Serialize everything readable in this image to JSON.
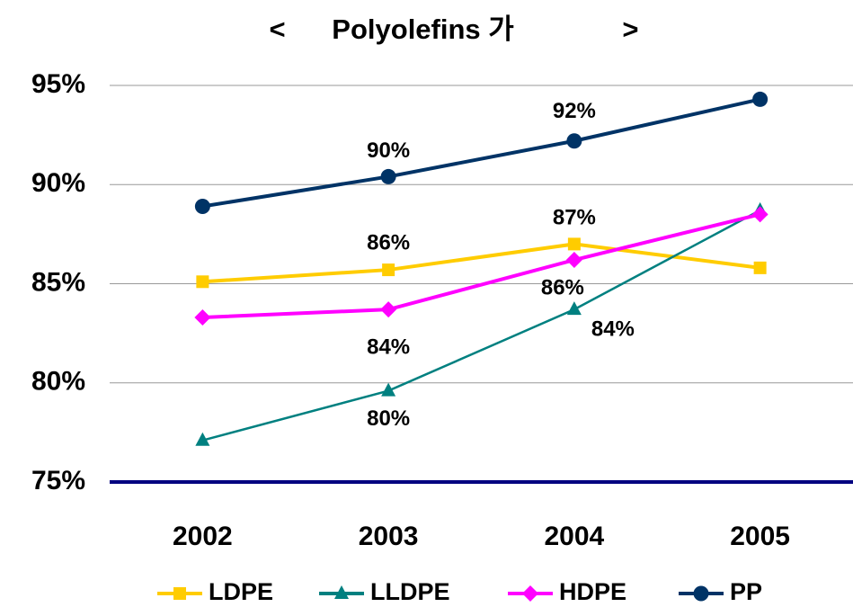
{
  "chart_data": {
    "type": "line",
    "title": "<      Polyolefins 가              >",
    "categories": [
      "2002",
      "2003",
      "2004",
      "2005"
    ],
    "series": [
      {
        "name": "LDPE",
        "color": "#ffcc00",
        "marker": "square",
        "values": [
          85.1,
          85.7,
          87.0,
          85.8
        ],
        "value_labels": [
          null,
          "86%",
          "87%",
          null
        ]
      },
      {
        "name": "LLDPE",
        "color": "#008080",
        "marker": "triangle",
        "values": [
          77.1,
          79.6,
          83.7,
          88.7
        ],
        "value_labels": [
          null,
          "80%",
          "84%",
          null
        ]
      },
      {
        "name": "HDPE",
        "color": "#ff00ff",
        "marker": "diamond",
        "values": [
          83.3,
          83.7,
          86.2,
          88.5
        ],
        "value_labels": [
          null,
          "84%",
          "86%",
          null
        ]
      },
      {
        "name": "PP",
        "color": "#003366",
        "marker": "circle",
        "values": [
          88.9,
          90.4,
          92.2,
          94.3
        ],
        "value_labels": [
          null,
          "90%",
          "92%",
          null
        ]
      }
    ],
    "ylim": [
      75,
      95
    ],
    "yticks": [
      {
        "value": 75,
        "label": "75%"
      },
      {
        "value": 80,
        "label": "80%"
      },
      {
        "value": 85,
        "label": "85%"
      },
      {
        "value": 90,
        "label": "90%"
      },
      {
        "value": 95,
        "label": "95%"
      }
    ],
    "grid": true,
    "legend": "bottom"
  }
}
